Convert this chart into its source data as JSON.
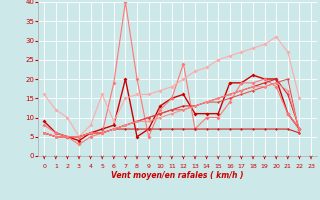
{
  "xlabel": "Vent moyen/en rafales ( km/h )",
  "background_color": "#cce8e8",
  "grid_color": "#aacccc",
  "xlim": [
    -0.5,
    23.5
  ],
  "ylim": [
    0,
    40
  ],
  "yticks": [
    0,
    5,
    10,
    15,
    20,
    25,
    30,
    35,
    40
  ],
  "xticks": [
    0,
    1,
    2,
    3,
    4,
    5,
    6,
    7,
    8,
    9,
    10,
    11,
    12,
    13,
    14,
    15,
    16,
    17,
    18,
    19,
    20,
    21,
    22,
    23
  ],
  "series": [
    {
      "y": [
        9,
        6,
        5,
        4,
        6,
        7,
        8,
        20,
        5,
        7,
        13,
        15,
        16,
        11,
        11,
        11,
        19,
        19,
        21,
        20,
        20,
        11,
        7,
        null
      ],
      "color": "#cc0000",
      "linewidth": 1.0,
      "markersize": 2.0
    },
    {
      "y": [
        8,
        6,
        5,
        3,
        5,
        6,
        19,
        40,
        20,
        5,
        12,
        15,
        24,
        7,
        10,
        10,
        14,
        19,
        19,
        20,
        18,
        11,
        7,
        null
      ],
      "color": "#ff7777",
      "linewidth": 0.8,
      "markersize": 2.0
    },
    {
      "y": [
        16,
        12,
        10,
        5,
        8,
        16,
        9,
        15,
        16,
        16,
        17,
        18,
        20,
        22,
        23,
        25,
        26,
        27,
        28,
        29,
        31,
        27,
        15,
        null
      ],
      "color": "#ffaaaa",
      "linewidth": 0.8,
      "markersize": 2.0
    },
    {
      "y": [
        6,
        5,
        5,
        5,
        6,
        6,
        7,
        7,
        7,
        7,
        7,
        7,
        7,
        7,
        7,
        7,
        7,
        7,
        7,
        7,
        7,
        7,
        6,
        null
      ],
      "color": "#cc2222",
      "linewidth": 0.8,
      "markersize": 1.5
    },
    {
      "y": [
        6,
        5,
        5,
        5,
        6,
        6,
        7,
        8,
        9,
        10,
        11,
        12,
        13,
        13,
        14,
        15,
        16,
        17,
        18,
        19,
        20,
        16,
        7,
        null
      ],
      "color": "#dd2222",
      "linewidth": 0.8,
      "markersize": 1.5
    },
    {
      "y": [
        6,
        5,
        5,
        5,
        6,
        6,
        7,
        8,
        9,
        10,
        11,
        12,
        12,
        13,
        14,
        14,
        15,
        16,
        17,
        18,
        19,
        20,
        6,
        null
      ],
      "color": "#ee4444",
      "linewidth": 0.7,
      "markersize": 1.5
    },
    {
      "y": [
        6,
        5,
        5,
        5,
        6,
        6,
        7,
        8,
        9,
        9,
        10,
        11,
        12,
        13,
        14,
        15,
        16,
        17,
        18,
        18,
        19,
        17,
        7,
        null
      ],
      "color": "#ff8888",
      "linewidth": 0.7,
      "markersize": 1.5
    }
  ]
}
